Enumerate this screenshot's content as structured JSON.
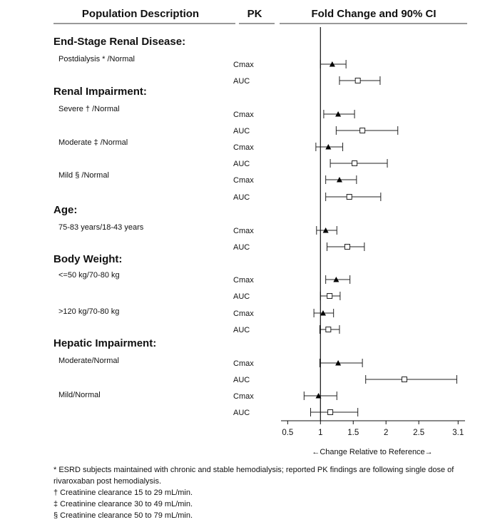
{
  "chart_data": {
    "type": "forest",
    "headers": [
      "Population Description",
      "PK",
      "Fold Change and 90% CI"
    ],
    "xlabel": "←Change Relative to Reference→",
    "xlim": [
      0.5,
      3.1
    ],
    "xticks": [
      "0.5",
      "1",
      "1.5",
      "2",
      "2.5",
      "3.1"
    ],
    "reference_line": 1,
    "marker_colors": {
      "Cmax": "#000000",
      "AUC": "#ffffff"
    },
    "groups": [
      {
        "title": "End-Stage Renal Disease:",
        "subgroups": [
          {
            "label": "Postdialysis * /Normal",
            "rows": [
              {
                "pk": "Cmax",
                "value": 1.18,
                "lo": 1.0,
                "hi": 1.39
              },
              {
                "pk": "AUC",
                "value": 1.57,
                "lo": 1.29,
                "hi": 1.91
              }
            ]
          }
        ]
      },
      {
        "title": "Renal Impairment:",
        "subgroups": [
          {
            "label": "Severe † /Normal",
            "rows": [
              {
                "pk": "Cmax",
                "value": 1.27,
                "lo": 1.05,
                "hi": 1.52
              },
              {
                "pk": "AUC",
                "value": 1.64,
                "lo": 1.24,
                "hi": 2.18
              }
            ]
          },
          {
            "label": "Moderate ‡ /Normal",
            "rows": [
              {
                "pk": "Cmax",
                "value": 1.12,
                "lo": 0.93,
                "hi": 1.34
              },
              {
                "pk": "AUC",
                "value": 1.52,
                "lo": 1.15,
                "hi": 2.02
              }
            ]
          },
          {
            "label": "Mild § /Normal",
            "rows": [
              {
                "pk": "Cmax",
                "value": 1.29,
                "lo": 1.08,
                "hi": 1.55
              },
              {
                "pk": "AUC",
                "value": 1.44,
                "lo": 1.08,
                "hi": 1.92
              }
            ]
          }
        ]
      },
      {
        "title": "Age:",
        "subgroups": [
          {
            "label": "75-83 years/18-43 years",
            "rows": [
              {
                "pk": "Cmax",
                "value": 1.08,
                "lo": 0.94,
                "hi": 1.25
              },
              {
                "pk": "AUC",
                "value": 1.41,
                "lo": 1.1,
                "hi": 1.67
              }
            ]
          }
        ]
      },
      {
        "title": "Body Weight:",
        "subgroups": [
          {
            "label": "<=50 kg/70-80 kg",
            "rows": [
              {
                "pk": "Cmax",
                "value": 1.24,
                "lo": 1.08,
                "hi": 1.45
              },
              {
                "pk": "AUC",
                "value": 1.14,
                "lo": 1.0,
                "hi": 1.3
              }
            ]
          },
          {
            "label": ">120 kg/70-80 kg",
            "rows": [
              {
                "pk": "Cmax",
                "value": 1.04,
                "lo": 0.9,
                "hi": 1.2
              },
              {
                "pk": "AUC",
                "value": 1.12,
                "lo": 0.99,
                "hi": 1.29
              }
            ]
          }
        ]
      },
      {
        "title": "Hepatic Impairment:",
        "subgroups": [
          {
            "label": "Moderate/Normal",
            "rows": [
              {
                "pk": "Cmax",
                "value": 1.27,
                "lo": 0.99,
                "hi": 1.64
              },
              {
                "pk": "AUC",
                "value": 2.28,
                "lo": 1.69,
                "hi": 3.08
              }
            ]
          },
          {
            "label": "Mild/Normal",
            "rows": [
              {
                "pk": "Cmax",
                "value": 0.97,
                "lo": 0.75,
                "hi": 1.25
              },
              {
                "pk": "AUC",
                "value": 1.15,
                "lo": 0.85,
                "hi": 1.57
              }
            ]
          }
        ]
      }
    ]
  },
  "footnotes": [
    "* ESRD subjects maintained with chronic and stable hemodialysis; reported PK findings are following single dose of rivaroxaban post hemodialysis.",
    "† Creatinine clearance 15 to 29 mL/min.",
    "‡ Creatinine clearance 30 to 49 mL/min.",
    "§ Creatinine clearance 50 to 79 mL/min."
  ]
}
